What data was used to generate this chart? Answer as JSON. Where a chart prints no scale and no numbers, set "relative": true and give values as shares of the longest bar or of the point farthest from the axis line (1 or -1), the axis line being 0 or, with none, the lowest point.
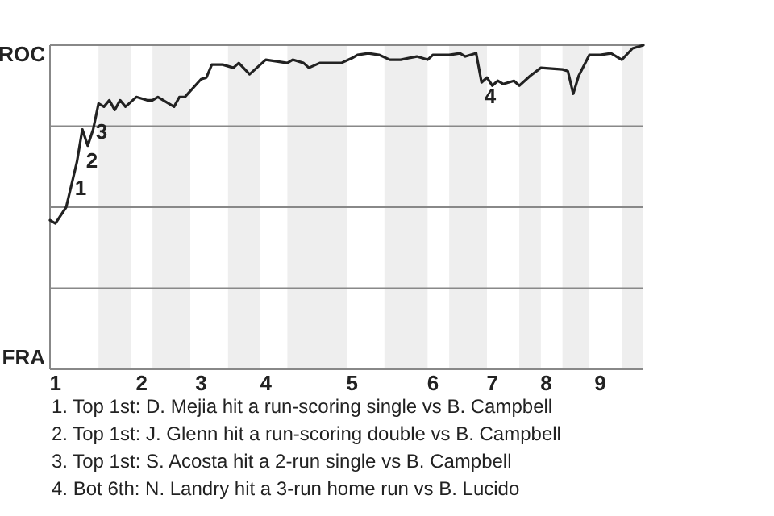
{
  "chart_data": {
    "type": "line",
    "relative": true,
    "marker": "none",
    "line_style": "solid",
    "categories": [
      null,
      "1",
      null,
      null,
      null,
      null,
      null,
      null,
      null,
      null,
      null,
      null,
      null,
      null,
      null,
      null,
      null,
      "2",
      null,
      null,
      null,
      null,
      null,
      null,
      null,
      null,
      null,
      null,
      "3",
      null,
      null,
      null,
      null,
      null,
      null,
      null,
      null,
      null,
      null,
      null,
      "4",
      null,
      null,
      null,
      null,
      null,
      null,
      null,
      null,
      null,
      null,
      null,
      null,
      null,
      null,
      null,
      "5",
      null,
      null,
      null,
      null,
      null,
      null,
      null,
      null,
      null,
      null,
      null,
      null,
      null,
      null,
      "6",
      null,
      null,
      null,
      null,
      null,
      null,
      null,
      null,
      null,
      null,
      "7",
      null,
      null,
      null,
      null,
      null,
      null,
      null,
      null,
      null,
      "8",
      null,
      null,
      null,
      null,
      null,
      null,
      null,
      null,
      null,
      "9",
      null,
      null,
      null,
      null,
      null,
      null,
      null,
      null
    ],
    "series": [
      {
        "color": "#222222",
        "values": [
          0.46,
          0.45,
          null,
          0.5,
          0.57,
          0.64,
          0.74,
          0.69,
          0.74,
          0.82,
          0.81,
          0.83,
          0.8,
          0.83,
          0.81,
          null,
          0.84,
          null,
          0.83,
          0.83,
          0.84,
          null,
          null,
          0.81,
          0.84,
          0.84,
          null,
          null,
          0.895,
          0.9,
          0.94,
          null,
          0.94,
          null,
          0.93,
          0.945,
          null,
          0.91,
          null,
          null,
          0.955,
          null,
          null,
          null,
          0.945,
          0.955,
          null,
          0.945,
          0.93,
          null,
          0.945,
          null,
          null,
          null,
          0.945,
          null,
          0.96,
          0.97,
          null,
          0.975,
          null,
          0.97,
          null,
          0.955,
          null,
          0.955,
          null,
          null,
          0.965,
          null,
          0.955,
          0.97,
          null,
          null,
          0.97,
          null,
          0.975,
          0.965,
          null,
          0.975,
          0.885,
          0.9,
          0.875,
          0.89,
          0.88,
          null,
          0.89,
          0.875,
          null,
          0.905,
          null,
          0.93,
          null,
          null,
          null,
          0.925,
          0.92,
          0.85,
          0.905,
          null,
          0.97,
          null,
          0.97,
          null,
          0.975,
          null,
          0.955,
          null,
          0.99,
          null,
          1
        ]
      }
    ],
    "ref_lines": [
      {
        "axis": "y",
        "value": 0.25,
        "color": "#888888"
      },
      {
        "axis": "y",
        "value": 0.5,
        "color": "#888888"
      },
      {
        "axis": "y",
        "value": 0.75,
        "color": "#888888"
      },
      {
        "axis": "y",
        "value": 1,
        "color": "#888888"
      }
    ],
    "annotations": [
      "ROC",
      "FRA",
      "1",
      "2",
      "3",
      "4",
      "1. Top 1st: D. Mejia hit a run-scoring single vs B. Campbell",
      "2. Top 1st: J. Glenn hit a run-scoring double vs B. Campbell",
      "3. Top 1st: S. Acosta hit a 2-run single vs B. Campbell",
      "4. Bot 6th: N. Landry hit a 3-run home run vs B. Lucido"
    ]
  }
}
